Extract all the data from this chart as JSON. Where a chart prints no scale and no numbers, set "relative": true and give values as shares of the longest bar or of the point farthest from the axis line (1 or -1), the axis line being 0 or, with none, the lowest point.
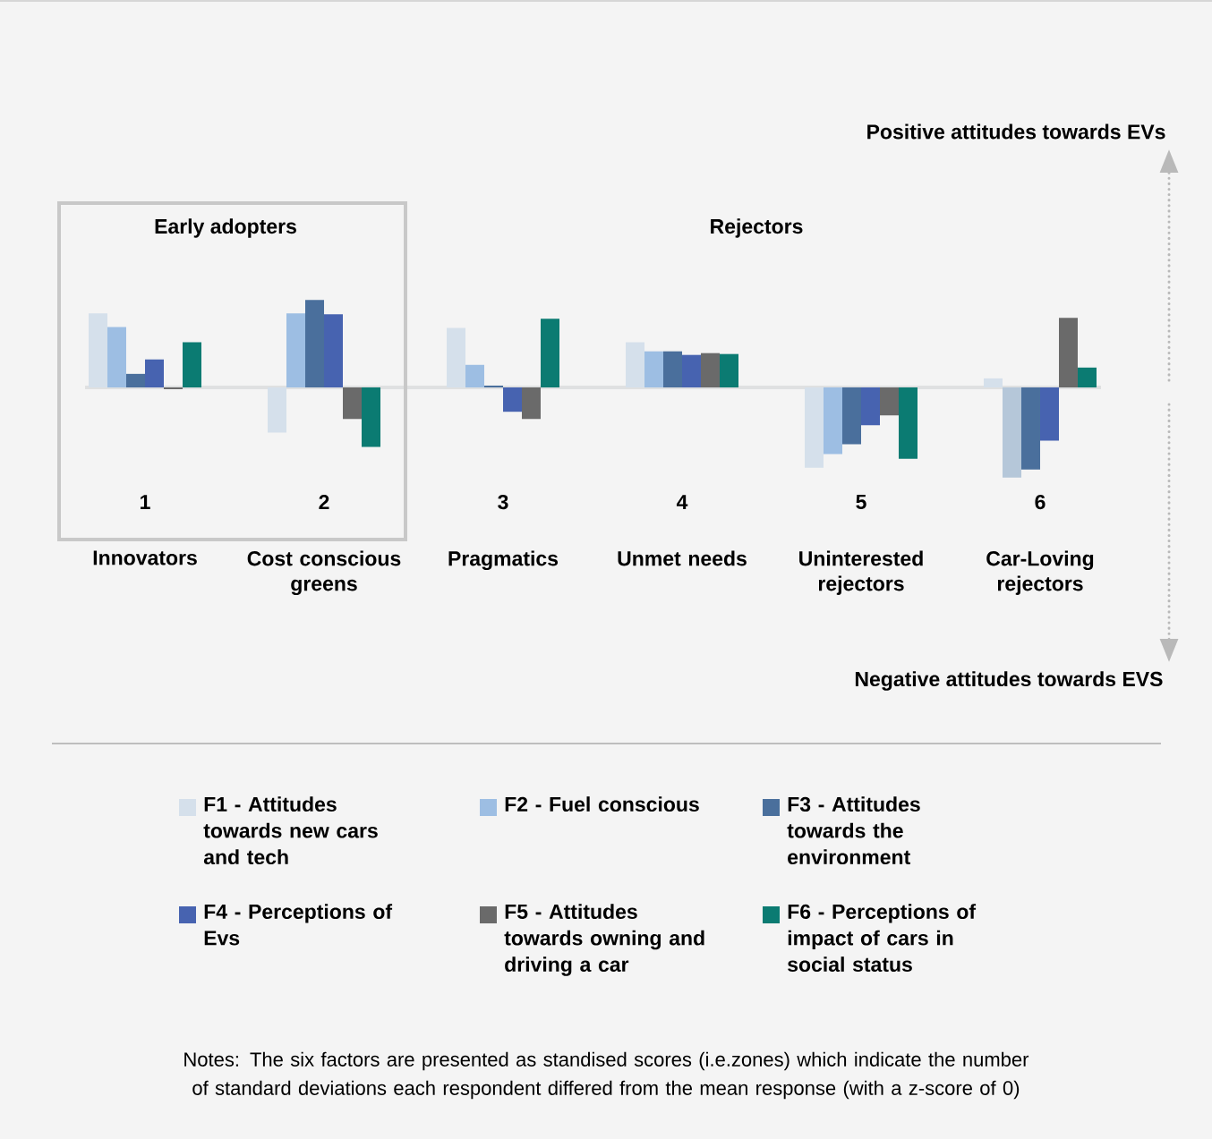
{
  "chart_data": {
    "type": "bar",
    "relative": true,
    "categories": [
      "Innovators",
      "Cost conscious greens",
      "Pragmatics",
      "Unmet needs",
      "Uninterested rejectors",
      "Car-Loving rejectors"
    ],
    "series": [
      {
        "name": "F1 - Attitudes towards new cars and tech",
        "color": "#d5e0eb",
        "values": [
          0.82,
          -0.5,
          0.66,
          0.5,
          -0.89,
          0.1
        ]
      },
      {
        "name": "F2 - Fuel conscious",
        "color": "#9dbee3",
        "colors": [
          "#9dbee3",
          "#9dbee3",
          "#9dbee3",
          "#9dbee3",
          "#9dbee3",
          "#b5c7d9"
        ],
        "values": [
          0.67,
          0.82,
          0.25,
          0.4,
          -0.74,
          -1
        ]
      },
      {
        "name": "F3 - Attitudes towards the environment",
        "color": "#4a6f9c",
        "values": [
          0.15,
          0.97,
          0.02,
          0.4,
          -0.63,
          -0.91
        ]
      },
      {
        "name": "F4 - Perceptions of Evs",
        "color": "#4763b0",
        "values": [
          0.31,
          0.81,
          -0.27,
          0.36,
          -0.42,
          -0.59
        ]
      },
      {
        "name": "F5 - Attitudes towards owning and driving a car",
        "color": "#6a6a6a",
        "values": [
          -0.02,
          -0.35,
          -0.35,
          0.38,
          -0.31,
          0.77
        ]
      },
      {
        "name": "F6 - Perceptions of impact of cars in social status",
        "color": "#0b7b72",
        "values": [
          0.5,
          -0.66,
          0.76,
          0.37,
          -0.79,
          0.22
        ]
      }
    ],
    "annotations": [
      "Early adopters",
      "Rejectors",
      "Positive attitudes towards EVs",
      "Negative attitudes towards EVS",
      "Notes: The six factors are presented as standised scores (i.e.zones) which indicate the number of standard deviations each respondent differed from the mean response (with a z-score of 0)",
      "1",
      "2",
      "3",
      "4",
      "5",
      "6"
    ],
    "legend": "bottom"
  }
}
